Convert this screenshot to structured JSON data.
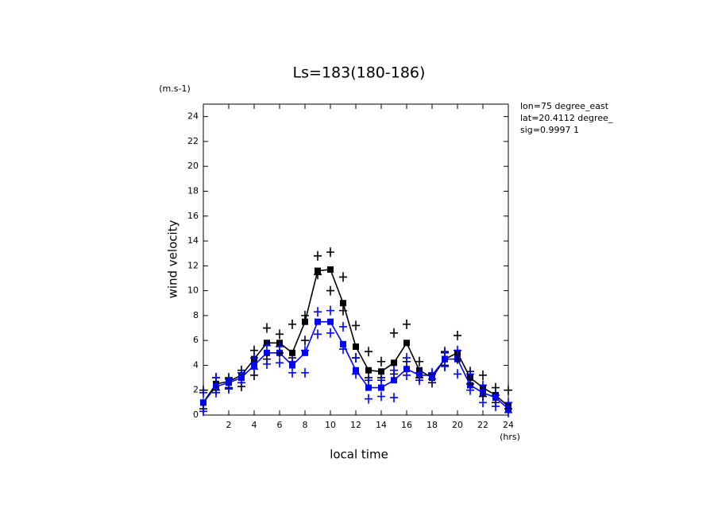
{
  "chart_data": {
    "type": "line",
    "title": "Ls=183(180-186)",
    "y_unit": "(m.s-1)",
    "x_unit": "(hrs)",
    "x_label": "local time",
    "y_label": "wind velocity",
    "annotations": [
      "lon=75 degree_east",
      "lat=20.4112 degree_",
      "sig=0.9997 1"
    ],
    "x": [
      0,
      1,
      2,
      3,
      4,
      5,
      6,
      7,
      8,
      9,
      10,
      11,
      12,
      13,
      14,
      15,
      16,
      17,
      18,
      19,
      20,
      21,
      22,
      23,
      24
    ],
    "xlim": [
      0,
      24
    ],
    "xticks": [
      2,
      4,
      6,
      8,
      10,
      12,
      14,
      16,
      18,
      20,
      22,
      24
    ],
    "ylim": [
      0,
      25
    ],
    "yticks": [
      0,
      2,
      4,
      6,
      8,
      10,
      12,
      14,
      16,
      18,
      20,
      22,
      24
    ],
    "series": [
      {
        "color": "#000000",
        "line": true,
        "marker": "square",
        "values": [
          1.0,
          2.5,
          2.7,
          3.2,
          4.5,
          5.8,
          5.8,
          5.0,
          7.5,
          11.6,
          11.7,
          9.0,
          5.5,
          3.6,
          3.5,
          4.2,
          5.8,
          3.6,
          3.0,
          4.5,
          5.0,
          3.0,
          2.2,
          1.6,
          0.7
        ]
      },
      {
        "color": "#0000ff",
        "line": true,
        "marker": "square",
        "values": [
          1.0,
          2.3,
          2.6,
          3.0,
          4.0,
          5.0,
          5.0,
          4.0,
          5.0,
          7.5,
          7.5,
          5.7,
          3.6,
          2.2,
          2.2,
          2.8,
          3.7,
          3.2,
          3.2,
          4.5,
          4.5,
          2.4,
          1.8,
          1.4,
          0.5
        ]
      },
      {
        "color": "#000000",
        "line": false,
        "marker": "plus",
        "values": [
          2.0,
          3.0,
          3.0,
          3.6,
          5.2,
          7.0,
          6.5,
          7.3,
          8.0,
          12.8,
          13.1,
          11.1,
          7.2,
          5.1,
          4.3,
          6.6,
          7.3,
          4.3,
          3.3,
          5.1,
          6.4,
          3.5,
          3.2,
          2.2,
          2.0
        ]
      },
      {
        "color": "#000000",
        "line": false,
        "marker": "plus",
        "values": [
          0.5,
          2.0,
          2.2,
          2.3,
          3.2,
          4.5,
          5.0,
          4.6,
          6.0,
          11.3,
          10.0,
          8.4,
          4.6,
          3.0,
          3.0,
          3.3,
          4.3,
          3.0,
          2.6,
          4.0,
          4.5,
          2.5,
          1.5,
          1.0,
          0.5
        ]
      },
      {
        "color": "#0000ff",
        "line": false,
        "marker": "plus",
        "values": [
          1.8,
          3.0,
          2.9,
          3.4,
          4.6,
          5.6,
          5.5,
          4.3,
          5.2,
          8.3,
          8.4,
          7.1,
          4.6,
          2.8,
          2.8,
          3.6,
          4.6,
          3.4,
          3.4,
          5.0,
          5.2,
          3.3,
          2.4,
          1.6,
          1.0
        ]
      },
      {
        "color": "#0000ff",
        "line": false,
        "marker": "plus",
        "values": [
          0.3,
          1.8,
          2.1,
          2.6,
          3.7,
          4.1,
          4.2,
          3.4,
          3.4,
          6.5,
          6.6,
          5.3,
          3.3,
          1.3,
          1.5,
          1.4,
          3.2,
          2.8,
          2.9,
          3.9,
          3.3,
          2.0,
          1.0,
          0.7,
          0.2
        ]
      }
    ]
  }
}
